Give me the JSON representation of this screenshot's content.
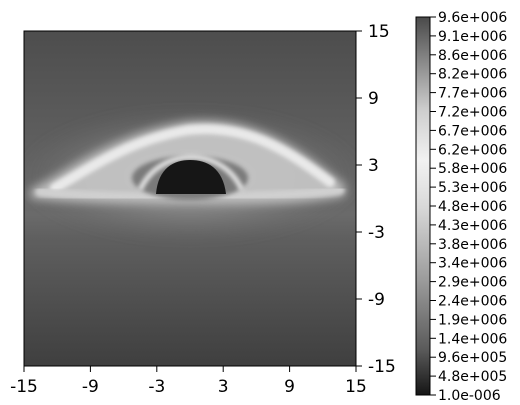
{
  "chart_data": {
    "type": "heatmap",
    "title": "",
    "xlabel": "",
    "ylabel": "",
    "xlim": [
      -15,
      15
    ],
    "ylim": [
      -15,
      15
    ],
    "x_ticks": [
      "-15",
      "-9",
      "-3",
      "3",
      "9",
      "15"
    ],
    "y_ticks": [
      "15",
      "9",
      "3",
      "-3",
      "-9",
      "-15"
    ],
    "colorbar": {
      "range": [
        1e-06,
        9600000.0
      ],
      "colormap": "grayscale (dark → bright → dark)",
      "tick_labels": [
        "9.6e+006",
        "9.1e+006",
        "8.6e+006",
        "8.2e+006",
        "7.7e+006",
        "7.2e+006",
        "6.7e+006",
        "6.2e+006",
        "5.8e+006",
        "5.3e+006",
        "4.8e+006",
        "4.3e+006",
        "3.8e+006",
        "3.4e+006",
        "2.9e+006",
        "2.4e+006",
        "1.9e+006",
        "1.4e+006",
        "9.6e+005",
        "4.8e+005",
        "1.0e-006"
      ]
    },
    "features": [
      {
        "name": "black hole shadow",
        "center": [
          0,
          1.5
        ],
        "radius": 4.2,
        "intensity": 1e-06
      },
      {
        "name": "accretion disk ring",
        "x_extent": [
          -15,
          15
        ],
        "y_extent": [
          -2,
          9
        ],
        "peak_intensity": 7500000.0
      }
    ],
    "background_intensity": 2000000.0
  }
}
